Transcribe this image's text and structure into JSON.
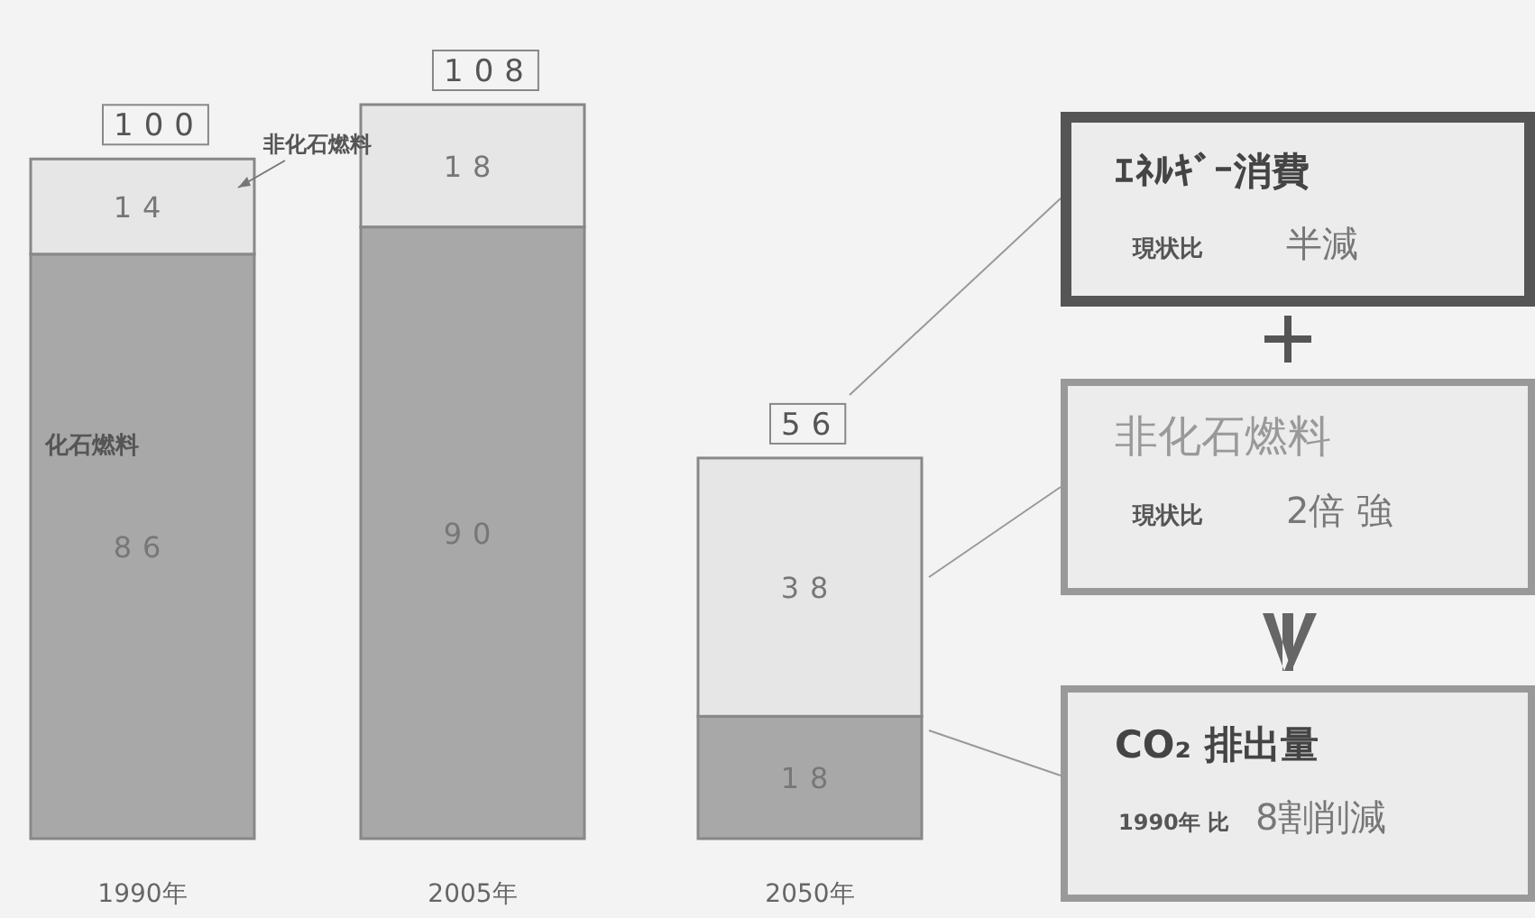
{
  "chart_data": {
    "type": "bar",
    "categories": [
      "1990年",
      "2005年",
      "2050年"
    ],
    "stacked": true,
    "data_labels": true,
    "series": [
      {
        "name": "化石燃料",
        "color": "#a8a8a8",
        "values": [
          86,
          90,
          18
        ]
      },
      {
        "name": "非化石燃料",
        "color": "#e6e6e6",
        "values": [
          14,
          18,
          38
        ]
      }
    ],
    "totals": [
      "100",
      "108",
      "56"
    ],
    "annotations": [
      "ｴﾈﾙｷﾞｰ消費",
      "現状比",
      "半減",
      "非化石燃料",
      "現状比",
      "2倍 強",
      "CO₂ 排出量",
      "1990年 比",
      "8割削減"
    ]
  }
}
